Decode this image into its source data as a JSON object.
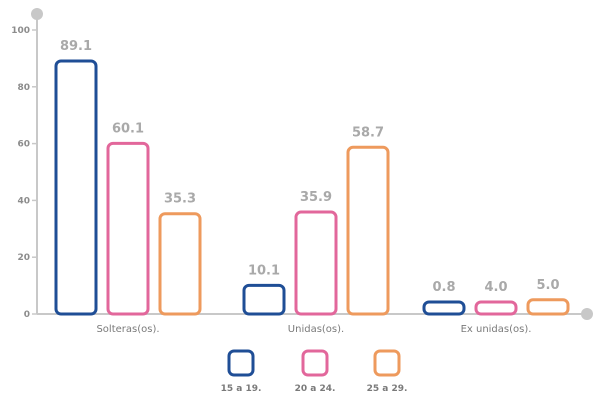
{
  "chart_data": {
    "type": "bar",
    "categories": [
      "Solteras(os).",
      "Unidas(os).",
      "Ex unidas(os)."
    ],
    "series": [
      {
        "name": "15 a 19.",
        "values": [
          89.1,
          10.1,
          0.8
        ],
        "color": "#1f4e96"
      },
      {
        "name": "20 a 24.",
        "values": [
          60.1,
          35.9,
          4.0
        ],
        "color": "#e2679b"
      },
      {
        "name": "25 a 29.",
        "values": [
          35.3,
          58.7,
          5.0
        ],
        "color": "#ee9a5d"
      }
    ],
    "value_labels": [
      [
        "89.1",
        "10.1",
        "0.8"
      ],
      [
        "60.1",
        "35.9",
        "4.0"
      ],
      [
        "35.3",
        "58.7",
        "5.0"
      ]
    ],
    "yticks": [
      0,
      20,
      40,
      60,
      80,
      100
    ],
    "ylim": [
      0,
      100
    ],
    "grid": false,
    "legend_position": "bottom",
    "axis_color": "#c8c8c8"
  }
}
